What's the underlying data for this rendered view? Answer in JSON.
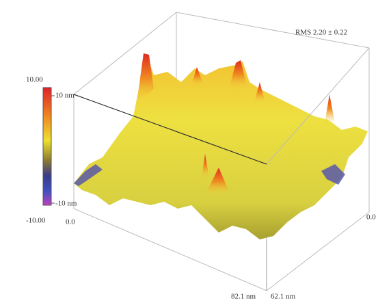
{
  "rms_label": "RMS  2.20 ± 0.22",
  "colorbar": {
    "max_label": "10.00",
    "top_label": "10 nm",
    "bottom_label": "-10 nm",
    "min_label": "-10.00"
  },
  "axes": {
    "origin_left": "0.0",
    "origin_right": "0.0",
    "x_end": "82.1 nm",
    "y_end": "62.1 nm"
  }
}
